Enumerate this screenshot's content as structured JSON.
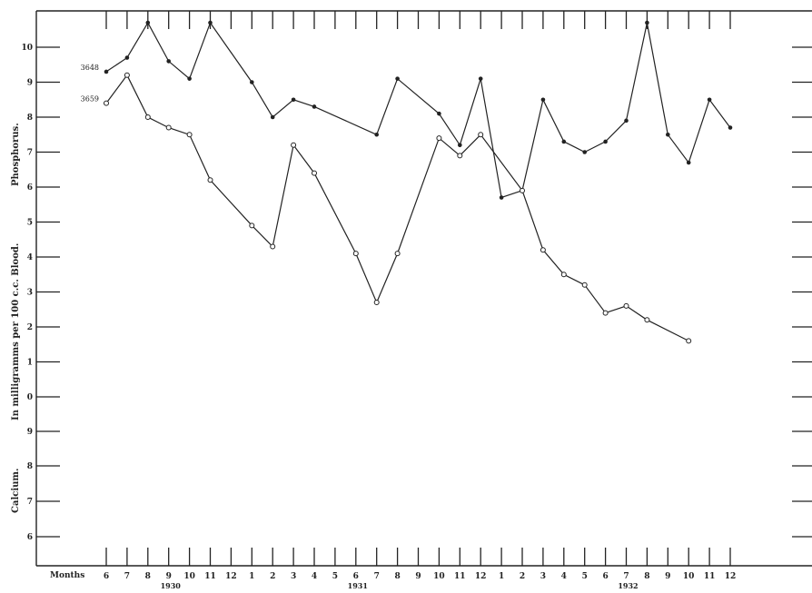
{
  "chart_data": {
    "type": "line",
    "xlabel": "Months",
    "ylabel_lines": [
      "Calcium.",
      "In milligramms per 100 c.c. Blood.",
      "Phosphorus."
    ],
    "phosphorus_axis": {
      "ticks": [
        "0",
        "1",
        "2",
        "3",
        "4",
        "5",
        "6",
        "7",
        "8",
        "9",
        "10"
      ]
    },
    "calcium_axis": {
      "ticks": [
        "6",
        "7",
        "8",
        "9"
      ]
    },
    "x_tick_labels": [
      "6",
      "7",
      "8",
      "9",
      "10",
      "11",
      "12",
      "1",
      "2",
      "3",
      "4",
      "5",
      "6",
      "7",
      "8",
      "9",
      "10",
      "11",
      "12",
      "1",
      "2",
      "3",
      "4",
      "5",
      "6",
      "7",
      "8",
      "9",
      "10",
      "11",
      "12"
    ],
    "years": [
      {
        "label": "1930",
        "at_index": 3
      },
      {
        "label": "1931",
        "at_index": 12
      },
      {
        "label": "1932",
        "at_index": 25
      }
    ],
    "series": [
      {
        "name": "3648",
        "marker": "filled",
        "points": [
          [
            0,
            9.3
          ],
          [
            1,
            9.7
          ],
          [
            2,
            10.7
          ],
          [
            3,
            9.6
          ],
          [
            4,
            9.1
          ],
          [
            5,
            10.7
          ],
          [
            7,
            9.0
          ],
          [
            8,
            8.0
          ],
          [
            9,
            8.5
          ],
          [
            10,
            8.3
          ],
          [
            13,
            7.5
          ],
          [
            14,
            9.1
          ],
          [
            16,
            8.1
          ],
          [
            17,
            7.2
          ],
          [
            18,
            9.1
          ],
          [
            19,
            5.7
          ],
          [
            20,
            5.9
          ],
          [
            21,
            8.5
          ],
          [
            22,
            7.3
          ],
          [
            23,
            7.0
          ],
          [
            24,
            7.3
          ],
          [
            25,
            7.9
          ],
          [
            26,
            10.7
          ],
          [
            27,
            7.5
          ],
          [
            28,
            6.7
          ],
          [
            29,
            8.5
          ],
          [
            30,
            7.7
          ]
        ]
      },
      {
        "name": "3659",
        "marker": "open",
        "points": [
          [
            0,
            8.4
          ],
          [
            1,
            9.2
          ],
          [
            2,
            8.0
          ],
          [
            3,
            7.7
          ],
          [
            4,
            7.5
          ],
          [
            5,
            6.2
          ],
          [
            7,
            4.9
          ],
          [
            8,
            4.3
          ],
          [
            9,
            7.2
          ],
          [
            10,
            6.4
          ],
          [
            12,
            4.1
          ],
          [
            13,
            2.7
          ],
          [
            14,
            4.1
          ],
          [
            16,
            7.4
          ],
          [
            17,
            6.9
          ],
          [
            18,
            7.5
          ],
          [
            20,
            5.9
          ],
          [
            21,
            4.2
          ],
          [
            22,
            3.5
          ],
          [
            23,
            3.2
          ],
          [
            24,
            2.4
          ],
          [
            25,
            2.6
          ],
          [
            26,
            2.2
          ],
          [
            28,
            1.6
          ]
        ]
      }
    ]
  }
}
